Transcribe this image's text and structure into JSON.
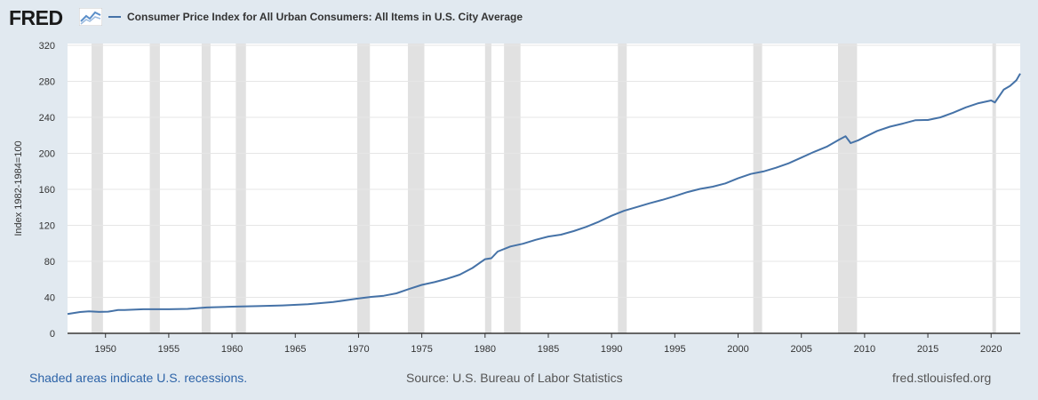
{
  "header": {
    "logo_text": "FRED",
    "logo_icon": "trend-graph-icon"
  },
  "chart_data": {
    "type": "line",
    "title": "",
    "xlabel": "",
    "ylabel": "Index 1982-1984=100",
    "ylim": [
      0,
      320
    ],
    "xlim": [
      1947.0,
      2022.3
    ],
    "yticks": [
      "0",
      "40",
      "80",
      "120",
      "160",
      "200",
      "240",
      "280",
      "320"
    ],
    "xticks": [
      "1950",
      "1955",
      "1960",
      "1965",
      "1970",
      "1975",
      "1980",
      "1985",
      "1990",
      "1995",
      "2000",
      "2005",
      "2010",
      "2015",
      "2020"
    ],
    "grid": true,
    "legend_position": "top-left",
    "recessions": [
      [
        1948.9,
        1949.8
      ],
      [
        1953.5,
        1954.3
      ],
      [
        1957.6,
        1958.3
      ],
      [
        1960.3,
        1961.1
      ],
      [
        1969.9,
        1970.9
      ],
      [
        1973.9,
        1975.2
      ],
      [
        1980.0,
        1980.5
      ],
      [
        1981.5,
        1982.8
      ],
      [
        1990.5,
        1991.2
      ],
      [
        2001.2,
        2001.9
      ],
      [
        2007.9,
        2009.4
      ],
      [
        2020.1,
        2020.3
      ]
    ],
    "series": [
      {
        "name": "Consumer Price Index for All Urban Consumers: All Items in U.S. City Average",
        "color": "#4572a7",
        "x": [
          1947.0,
          1948.0,
          1948.7,
          1949.5,
          1950.2,
          1951.0,
          1951.5,
          1953.0,
          1955.0,
          1956.5,
          1958.0,
          1960.0,
          1962.0,
          1964.0,
          1966.0,
          1968.0,
          1970.0,
          1971.0,
          1972.0,
          1973.0,
          1974.0,
          1975.0,
          1976.0,
          1977.0,
          1978.0,
          1979.0,
          1980.0,
          1980.5,
          1981.0,
          1982.0,
          1983.0,
          1984.0,
          1985.0,
          1986.0,
          1987.0,
          1988.0,
          1989.0,
          1990.0,
          1991.0,
          1992.0,
          1993.0,
          1994.0,
          1995.0,
          1996.0,
          1997.0,
          1998.0,
          1999.0,
          2000.0,
          2001.0,
          2002.0,
          2003.0,
          2004.0,
          2005.0,
          2006.0,
          2007.0,
          2008.0,
          2008.5,
          2008.9,
          2009.5,
          2010.0,
          2011.0,
          2012.0,
          2013.0,
          2014.0,
          2014.8,
          2015.0,
          2016.0,
          2017.0,
          2018.0,
          2019.0,
          2020.0,
          2020.3,
          2021.0,
          2021.5,
          2022.0,
          2022.3
        ],
        "values": [
          21.5,
          23.7,
          24.4,
          23.8,
          24.1,
          25.9,
          26.0,
          26.8,
          26.8,
          27.2,
          28.7,
          29.6,
          30.2,
          31.0,
          32.4,
          34.8,
          38.8,
          40.5,
          41.8,
          44.4,
          49.3,
          53.8,
          56.9,
          60.6,
          65.2,
          72.6,
          82.4,
          83.5,
          90.9,
          96.5,
          99.6,
          103.9,
          107.6,
          109.6,
          113.6,
          118.3,
          124.0,
          130.7,
          136.2,
          140.3,
          144.5,
          148.2,
          152.4,
          156.9,
          160.5,
          163.0,
          166.6,
          172.2,
          177.1,
          179.9,
          184.0,
          188.9,
          195.3,
          201.6,
          207.3,
          215.3,
          219.0,
          211.4,
          214.5,
          218.1,
          224.9,
          229.6,
          233.0,
          236.7,
          237.0,
          237.0,
          240.0,
          245.1,
          251.1,
          255.7,
          258.8,
          256.5,
          270.9,
          275.0,
          281.2,
          288.7
        ]
      }
    ]
  },
  "footer": {
    "note": "Shaded areas indicate U.S. recessions.",
    "source": "Source: U.S. Bureau of Labor Statistics",
    "site": "fred.stlouisfed.org"
  }
}
